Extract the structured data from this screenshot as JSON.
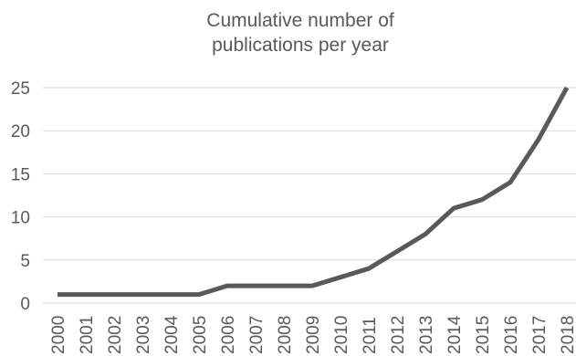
{
  "chart_data": {
    "type": "line",
    "title_lines": [
      "Cumulative number of",
      "publications per year"
    ],
    "xlabel": "",
    "ylabel": "",
    "categories": [
      "2000",
      "2001",
      "2002",
      "2003",
      "2004",
      "2005",
      "2006",
      "2007",
      "2008",
      "2009",
      "2010",
      "2011",
      "2012",
      "2013",
      "2014",
      "2015",
      "2016",
      "2017",
      "2018"
    ],
    "series": [
      {
        "values": [
          1,
          1,
          1,
          1,
          1,
          1,
          2,
          2,
          2,
          2,
          3,
          4,
          6,
          8,
          11,
          12,
          14,
          19,
          25
        ]
      }
    ],
    "y_ticks": [
      0,
      5,
      10,
      15,
      20,
      25
    ],
    "ylim": [
      0,
      25
    ],
    "grid": true,
    "legend": "none",
    "line_color": "#595959",
    "grid_color": "#d9d9d9"
  }
}
